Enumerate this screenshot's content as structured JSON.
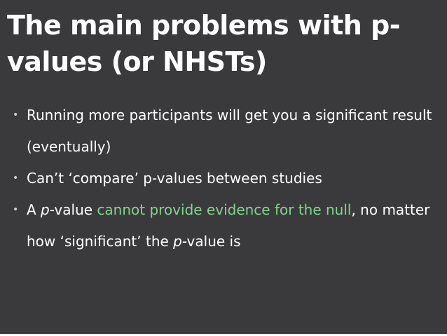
{
  "slide": {
    "title": "The main problems with p-values (or NHSTs)",
    "bullet_marker": "•",
    "colors": {
      "background": "#3a3a3c",
      "text": "#ffffff",
      "highlight": "#7fd68a"
    },
    "bullets": [
      {
        "text": "Running more participants will get you a significant result (eventually)"
      },
      {
        "text": "Can’t ‘compare’ p-values between studies"
      },
      {
        "prefix": "A ",
        "italic1": "p",
        "mid1": "-value ",
        "highlight": "cannot provide evidence for the null",
        "mid2": ", no matter how ‘significant’ the ",
        "italic2": "p",
        "suffix": "-value is"
      }
    ]
  }
}
